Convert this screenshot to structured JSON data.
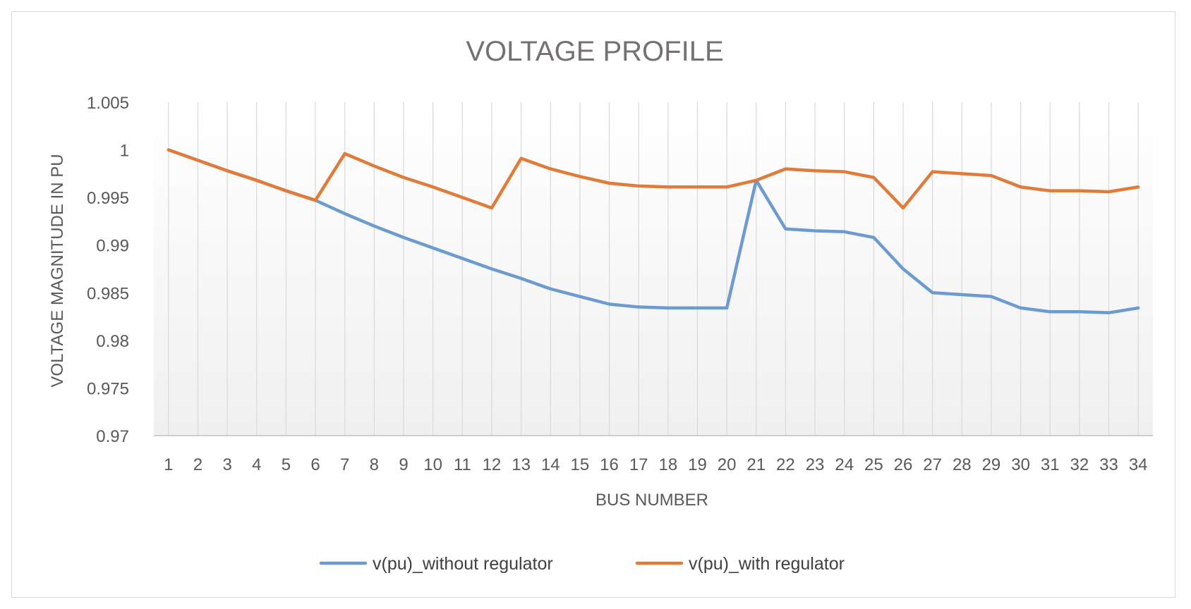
{
  "chart_data": {
    "type": "line",
    "title": "VOLTAGE PROFILE",
    "xlabel": "BUS NUMBER",
    "ylabel": "VOLTAGE MAGNITUDE IN PU",
    "ylim": [
      0.97,
      1.005
    ],
    "y_ticks": [
      "0.97",
      "0.975",
      "0.98",
      "0.985",
      "0.99",
      "0.995",
      "1",
      "1.005"
    ],
    "y_tick_values": [
      0.97,
      0.975,
      0.98,
      0.985,
      0.99,
      0.995,
      1.0,
      1.005
    ],
    "categories": [
      "1",
      "2",
      "3",
      "4",
      "5",
      "6",
      "7",
      "8",
      "9",
      "10",
      "11",
      "12",
      "13",
      "14",
      "15",
      "16",
      "17",
      "18",
      "19",
      "20",
      "21",
      "22",
      "23",
      "24",
      "25",
      "26",
      "27",
      "28",
      "29",
      "30",
      "31",
      "32",
      "33",
      "34"
    ],
    "grid": "vertical",
    "legend_position": "bottom",
    "series": [
      {
        "name": "v(pu)_without regulator",
        "color": "#6c9bd2",
        "values": [
          1.0,
          0.9989,
          0.9978,
          0.9968,
          0.9957,
          0.9947,
          0.9933,
          0.992,
          0.9908,
          0.9897,
          0.9886,
          0.9875,
          0.9865,
          0.9854,
          0.9846,
          0.9838,
          0.9835,
          0.9834,
          0.9834,
          0.9834,
          0.9968,
          0.9917,
          0.9915,
          0.9914,
          0.9908,
          0.9875,
          0.985,
          0.9848,
          0.9846,
          0.9834,
          0.983,
          0.983,
          0.9829,
          0.9834
        ]
      },
      {
        "name": "v(pu)_with regulator",
        "color": "#e07b39",
        "values": [
          1.0,
          0.9989,
          0.9978,
          0.9968,
          0.9957,
          0.9947,
          0.9996,
          0.9983,
          0.9971,
          0.9961,
          0.995,
          0.9939,
          0.9991,
          0.998,
          0.9972,
          0.9965,
          0.9962,
          0.9961,
          0.9961,
          0.9961,
          0.9968,
          0.998,
          0.9978,
          0.9977,
          0.9971,
          0.9939,
          0.9977,
          0.9975,
          0.9973,
          0.9961,
          0.9957,
          0.9957,
          0.9956,
          0.9961
        ]
      }
    ]
  }
}
